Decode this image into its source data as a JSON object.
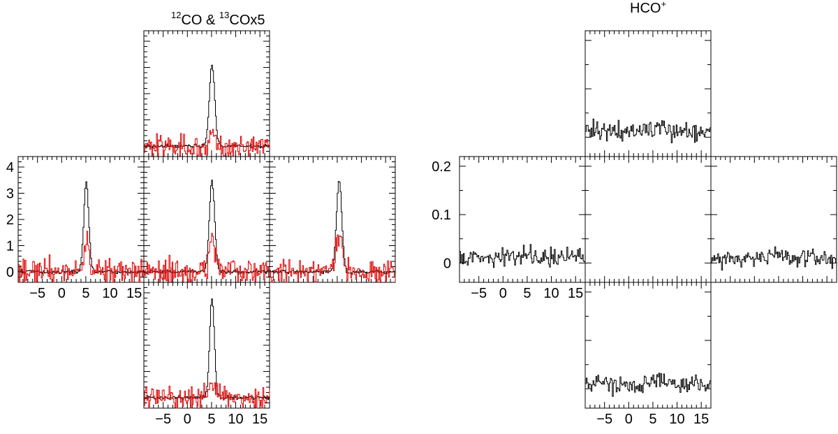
{
  "chart_data": [
    {
      "type": "line",
      "title_parts": {
        "sup1": "12",
        "main1": "CO & ",
        "sup2": "13",
        "main2": "COx5"
      },
      "x_range": [
        -9,
        17
      ],
      "y_range": [
        -0.4,
        4.4
      ],
      "x_ticks": [
        "-5",
        "0",
        "5",
        "10",
        "15"
      ],
      "y_ticks": [
        "0",
        "1",
        "2",
        "3",
        "4"
      ],
      "series": [
        {
          "color": "#000000"
        },
        {
          "color": "#e00000"
        }
      ],
      "panels": [
        {
          "position": "north",
          "peak_12co": 3.1,
          "peak_13co": 0.4,
          "center": 5.0,
          "width": 1.0
        },
        {
          "position": "west",
          "peak_12co": 3.4,
          "peak_13co": 1.1,
          "center": 5.0,
          "width": 0.95
        },
        {
          "position": "center",
          "peak_12co": 3.5,
          "peak_13co": 1.3,
          "center": 5.0,
          "width": 1.0
        },
        {
          "position": "east",
          "peak_12co": 3.5,
          "peak_13co": 1.5,
          "center": 5.3,
          "width": 1.0
        },
        {
          "position": "south",
          "peak_12co": 3.8,
          "peak_13co": 0.6,
          "center": 5.0,
          "width": 0.9
        }
      ]
    },
    {
      "type": "line",
      "title_parts": {
        "main1": "HCO",
        "sup1": "+"
      },
      "x_range": [
        -9,
        17
      ],
      "y_range": [
        -0.04,
        0.22
      ],
      "x_ticks": [
        "-5",
        "0",
        "5",
        "10",
        "15"
      ],
      "y_ticks": [
        "0",
        "0.1",
        "0.2"
      ],
      "series": [
        {
          "color": "#000000"
        }
      ],
      "panels": [
        {
          "position": "north",
          "level": 0.012
        },
        {
          "position": "west",
          "level": 0.012
        },
        {
          "position": "center",
          "level": null
        },
        {
          "position": "east",
          "level": 0.01
        },
        {
          "position": "south",
          "level": 0.01
        }
      ]
    }
  ]
}
